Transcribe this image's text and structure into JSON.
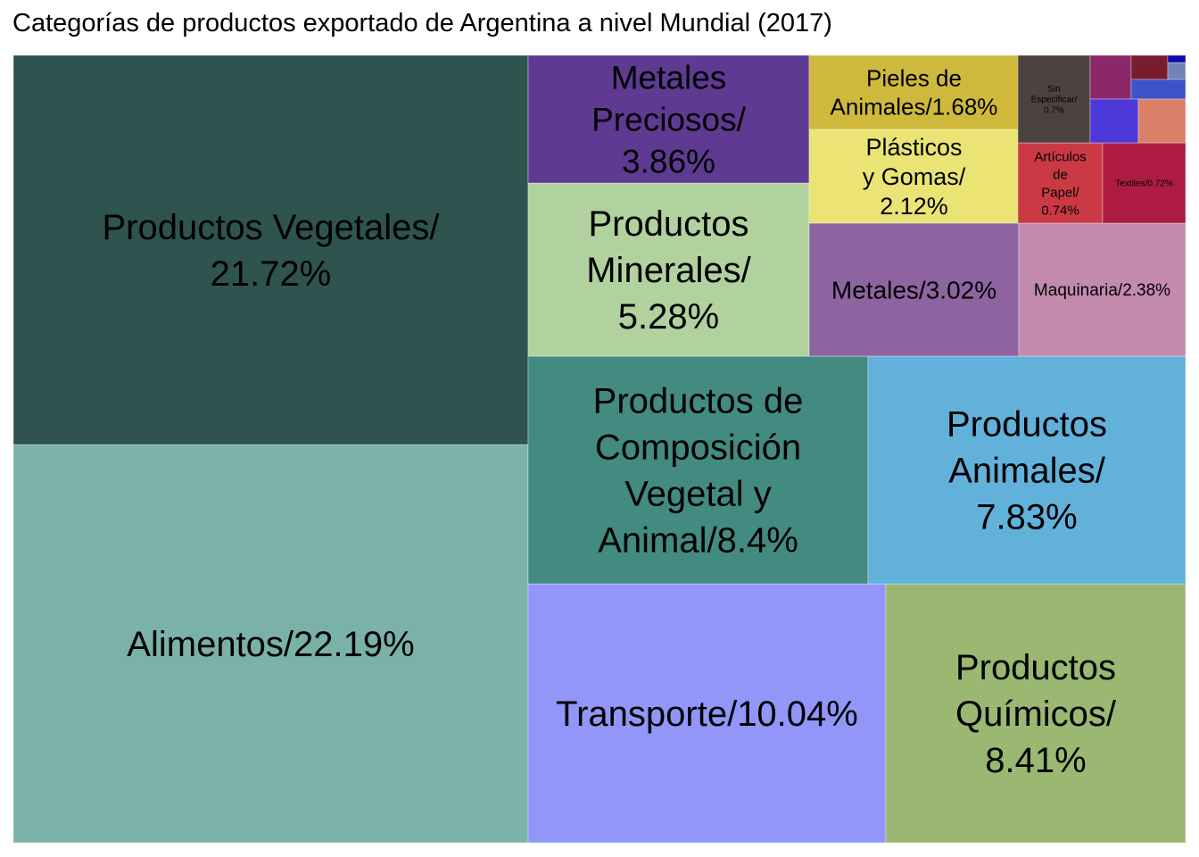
{
  "chart_data": {
    "type": "treemap",
    "title": "Categorías de productos exportado de Argentina a nivel Mundial (2017)",
    "tiles": [
      {
        "label": "Alimentos/22.19%",
        "name": "Alimentos",
        "value": 22.19,
        "color": "#7ab1a8"
      },
      {
        "label": "Productos Vegetales/ 21.72%",
        "name": "Productos Vegetales",
        "value": 21.72,
        "color": "#2f534f"
      },
      {
        "label": "Transporte/10.04%",
        "name": "Transporte",
        "value": 10.04,
        "color": "#9196f8"
      },
      {
        "label": "Productos Químicos/ 8.41%",
        "name": "Productos Químicos",
        "value": 8.41,
        "color": "#9ab871"
      },
      {
        "label": "Productos de Composición Vegetal y Animal/8.4%",
        "name": "Productos de Composición Vegetal y Animal",
        "value": 8.4,
        "color": "#438b80"
      },
      {
        "label": "Productos Animales/ 7.83%",
        "name": "Productos Animales",
        "value": 7.83,
        "color": "#62b1da"
      },
      {
        "label": "Productos Minerales/ 5.28%",
        "name": "Productos Minerales",
        "value": 5.28,
        "color": "#b1d19f"
      },
      {
        "label": "Metales Preciosos/ 3.86%",
        "name": "Metales Preciosos",
        "value": 3.86,
        "color": "#5f3a92"
      },
      {
        "label": "Metales/3.02%",
        "name": "Metales",
        "value": 3.02,
        "color": "#8e64a0"
      },
      {
        "label": "Maquinaria/2.38%",
        "name": "Maquinaria",
        "value": 2.38,
        "color": "#c48aae"
      },
      {
        "label": "Plásticos y Gomas/ 2.12%",
        "name": "Plásticos y Gomas",
        "value": 2.12,
        "color": "#e9e474"
      },
      {
        "label": "Pieles de Animales/1.68%",
        "name": "Pieles de Animales",
        "value": 1.68,
        "color": "#cfb93c"
      },
      {
        "label": "Artículos de Papel/ 0.74%",
        "name": "Artículos de Papel",
        "value": 0.74,
        "color": "#cb3a44"
      },
      {
        "label": "Textiles/0.72%",
        "name": "Textiles",
        "value": 0.72,
        "color": "#ae1d41"
      },
      {
        "label": "Sin Especificar/ 0.7%",
        "name": "Sin Especificar",
        "value": 0.7,
        "color": "#4c4340"
      },
      {
        "label": "",
        "value": null,
        "color": "#8c276a"
      },
      {
        "label": "",
        "value": null,
        "color": "#7a1c2f"
      },
      {
        "label": "",
        "value": null,
        "color": "#7083b5"
      },
      {
        "label": "",
        "value": null,
        "color": "#1007b0"
      },
      {
        "label": "",
        "value": null,
        "color": "#3d53c9"
      },
      {
        "label": "",
        "value": null,
        "color": "#4d39d9"
      },
      {
        "label": "",
        "value": null,
        "color": "#da8069"
      }
    ]
  }
}
